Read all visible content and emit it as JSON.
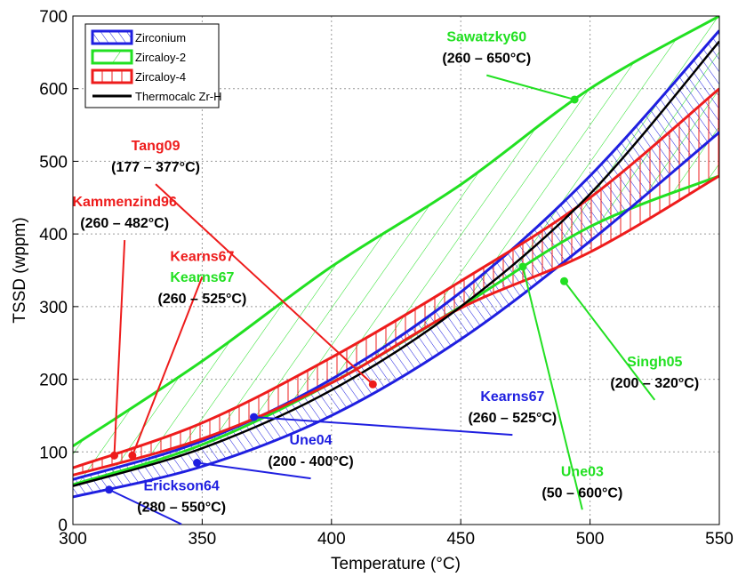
{
  "chart_data": {
    "type": "line",
    "title": "",
    "xlabel": "Temperature (°C)",
    "ylabel": "TSSD (wppm)",
    "xlim": [
      300,
      550
    ],
    "ylim": [
      0,
      700
    ],
    "xticks": [
      "300",
      "350",
      "400",
      "450",
      "500",
      "550"
    ],
    "yticks": [
      "0",
      "100",
      "200",
      "300",
      "400",
      "500",
      "600",
      "700"
    ],
    "grid": true,
    "legend_position": "top-left",
    "colors": {
      "zirconium": "#1f1fe0",
      "zircaloy2": "#22e022",
      "zircaloy4": "#ee1c1c",
      "thermocalc": "#000000",
      "gridline": "#9a9a9a"
    },
    "legend": [
      {
        "label": "Zirconium",
        "key": "zirconium"
      },
      {
        "label": "Zircaloy-2",
        "key": "zircaloy2"
      },
      {
        "label": "Zircaloy-4",
        "key": "zircaloy4"
      },
      {
        "label": "Thermocalc Zr-H",
        "key": "thermocalc"
      }
    ],
    "series": [
      {
        "name": "Zirconium",
        "key": "zirconium",
        "kind": "band",
        "lower": [
          [
            300,
            38
          ],
          [
            350,
            80
          ],
          [
            400,
            150
          ],
          [
            450,
            255
          ],
          [
            500,
            390
          ],
          [
            550,
            540
          ]
        ],
        "upper": [
          [
            300,
            62
          ],
          [
            350,
            115
          ],
          [
            400,
            200
          ],
          [
            450,
            320
          ],
          [
            500,
            480
          ],
          [
            550,
            680
          ]
        ]
      },
      {
        "name": "Zircaloy-2",
        "key": "zircaloy2",
        "kind": "band",
        "lower": [
          [
            300,
            55
          ],
          [
            350,
            110
          ],
          [
            400,
            195
          ],
          [
            450,
            300
          ],
          [
            500,
            410
          ],
          [
            550,
            480
          ]
        ],
        "upper": [
          [
            300,
            108
          ],
          [
            350,
            225
          ],
          [
            400,
            355
          ],
          [
            450,
            468
          ],
          [
            500,
            600
          ],
          [
            550,
            700
          ]
        ]
      },
      {
        "name": "Zircaloy-4",
        "key": "zircaloy4",
        "kind": "band",
        "lower": [
          [
            300,
            68
          ],
          [
            350,
            118
          ],
          [
            400,
            195
          ],
          [
            450,
            298
          ],
          [
            500,
            375
          ],
          [
            550,
            480
          ]
        ],
        "upper": [
          [
            300,
            78
          ],
          [
            350,
            140
          ],
          [
            400,
            230
          ],
          [
            450,
            335
          ],
          [
            500,
            450
          ],
          [
            550,
            600
          ]
        ]
      },
      {
        "name": "Thermocalc Zr-H",
        "key": "thermocalc",
        "kind": "line",
        "points": [
          [
            300,
            53
          ],
          [
            350,
            105
          ],
          [
            400,
            185
          ],
          [
            450,
            300
          ],
          [
            500,
            455
          ],
          [
            550,
            665
          ]
        ]
      }
    ],
    "annotations": [
      {
        "name": "Sawatzky60",
        "range": "(260 – 650°C)",
        "key": "zircaloy2",
        "text_pos": [
          460,
          665
        ],
        "point": [
          494,
          585
        ]
      },
      {
        "name": "Tang09",
        "range": "(177 – 377°C)",
        "key": "zircaloy4",
        "text_pos": [
          332,
          515
        ],
        "point": [
          416,
          193
        ]
      },
      {
        "name": "Kammenzind96",
        "range": "(260 – 482°C)",
        "key": "zircaloy4",
        "text_pos": [
          320,
          438
        ],
        "point": [
          316,
          95
        ]
      },
      {
        "name": "Kearns67",
        "range": "",
        "key": "zircaloy4",
        "text_pos": [
          350,
          363
        ],
        "point": [
          323,
          95
        ]
      },
      {
        "name": "Kearns67",
        "range": "(260 – 525°C)",
        "key": "zircaloy2",
        "text_pos": [
          350,
          334
        ],
        "point": null
      },
      {
        "name": "Singh05",
        "range": "(200 – 320°C)",
        "key": "zircaloy2",
        "text_pos": [
          525,
          218
        ],
        "point": [
          490,
          335
        ]
      },
      {
        "name": "Kearns67",
        "range": "(260 – 525°C)",
        "key": "zirconium",
        "text_pos": [
          470,
          170
        ],
        "point": [
          370,
          148
        ]
      },
      {
        "name": "Une04",
        "range": "(200 - 400°C)",
        "key": "zirconium",
        "text_pos": [
          392,
          110
        ],
        "point": [
          348,
          85
        ]
      },
      {
        "name": "Une03",
        "range": "(50 – 600°C)",
        "key": "zircaloy2",
        "text_pos": [
          497,
          67
        ],
        "point": [
          474,
          355
        ]
      },
      {
        "name": "Erickson64",
        "range": "(280 – 550°C)",
        "key": "zirconium",
        "text_pos": [
          342,
          47
        ],
        "point": [
          314,
          48
        ]
      }
    ]
  }
}
